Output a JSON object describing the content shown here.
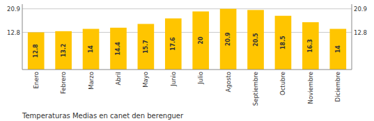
{
  "chart_data": {
    "type": "bar",
    "title": "Temperaturas Medias en canet den berenguer",
    "categories": [
      "Enero",
      "Febrero",
      "Marzo",
      "Abril",
      "Mayo",
      "Junio",
      "Julio",
      "Agosto",
      "Septiembre",
      "Octubre",
      "Noviembre",
      "Diciembre"
    ],
    "values": [
      12.8,
      13.2,
      14.0,
      14.4,
      15.7,
      17.6,
      20.0,
      20.9,
      20.5,
      18.5,
      16.3,
      14.0
    ],
    "color": "#FFC500",
    "ylim": [
      0.0,
      22.5
    ],
    "yticks": [
      12.8,
      20.9
    ],
    "y2lim": [
      0.0,
      22.5
    ],
    "y2ticks": [
      12.8,
      20.9
    ],
    "grid": true,
    "data_labels": true
  }
}
